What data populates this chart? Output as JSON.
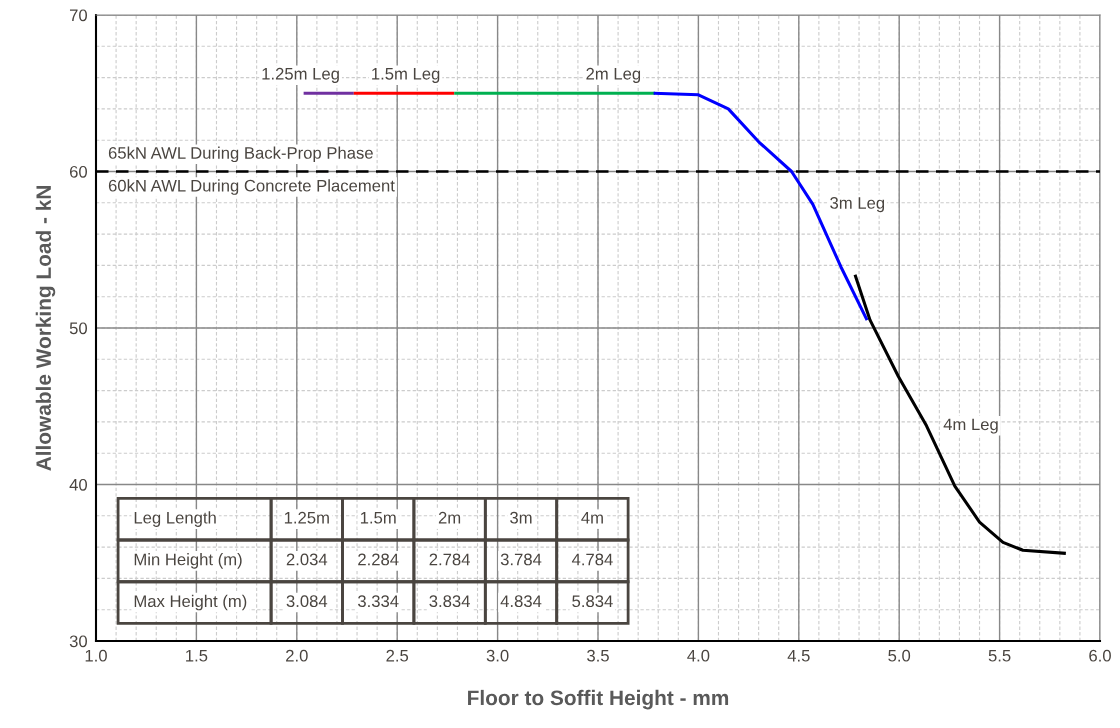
{
  "chart_data": {
    "type": "line",
    "xlabel": "Floor to Soffit Height - mm",
    "ylabel": "Allowable Working Load - kN",
    "xlim": [
      1.0,
      6.0
    ],
    "ylim": [
      30,
      70
    ],
    "xticks": [
      {
        "value": 1.0,
        "label": "1.0"
      },
      {
        "value": 1.5,
        "label": "1.5"
      },
      {
        "value": 2.0,
        "label": "2.0"
      },
      {
        "value": 2.5,
        "label": "2.5"
      },
      {
        "value": 3.0,
        "label": "3.0"
      },
      {
        "value": 3.5,
        "label": "3.5"
      },
      {
        "value": 4.0,
        "label": "4.0"
      },
      {
        "value": 4.5,
        "label": "4.5"
      },
      {
        "value": 5.0,
        "label": "5.0"
      },
      {
        "value": 5.5,
        "label": "5.5"
      },
      {
        "value": 6.0,
        "label": "6.0"
      }
    ],
    "yticks": [
      30,
      40,
      50,
      60,
      70
    ],
    "grid": true,
    "line_style": "solid",
    "marker": "none",
    "series": [
      {
        "name": "1.25m Leg",
        "color": "#7030a0",
        "x": [
          2.034,
          2.284
        ],
        "values": [
          65,
          65
        ]
      },
      {
        "name": "1.5m Leg",
        "color": "#ff0000",
        "x": [
          2.284,
          2.784
        ],
        "values": [
          65,
          65
        ]
      },
      {
        "name": "2m Leg",
        "color": "#00b050",
        "x": [
          2.784,
          3.784
        ],
        "values": [
          65,
          65
        ]
      },
      {
        "name": "3m Leg",
        "color": "#0000ff",
        "x": [
          3.777,
          4.0,
          4.149,
          4.3,
          4.464,
          4.57,
          4.71,
          4.84
        ],
        "values": [
          65.0,
          64.9,
          64.0,
          61.9,
          60.0,
          57.9,
          53.9,
          50.5
        ]
      },
      {
        "name": "4m Leg",
        "color": "#000000",
        "x": [
          4.78,
          4.855,
          4.996,
          5.136,
          5.277,
          5.4,
          5.517,
          5.616,
          5.83
        ],
        "values": [
          53.4,
          50.5,
          46.9,
          43.75,
          39.9,
          37.6,
          36.3,
          35.8,
          35.6
        ]
      }
    ],
    "ref_lines": [
      {
        "axis": "y",
        "value": 60,
        "label": "60kN AWL During Concrete Placement",
        "color": "#000000",
        "line_style": "dashed"
      }
    ],
    "annotations": [
      "65kN AWL During Back-Prop Phase",
      "Leg Length",
      "1.25m",
      "1.5m",
      "2m",
      "3m",
      "4m",
      "Min Height (m)",
      "2.034",
      "2.284",
      "2.784",
      "3.784",
      "4.784",
      "Max Height (m)",
      "3.084",
      "3.334",
      "3.834",
      "4.834",
      "5.834"
    ]
  }
}
